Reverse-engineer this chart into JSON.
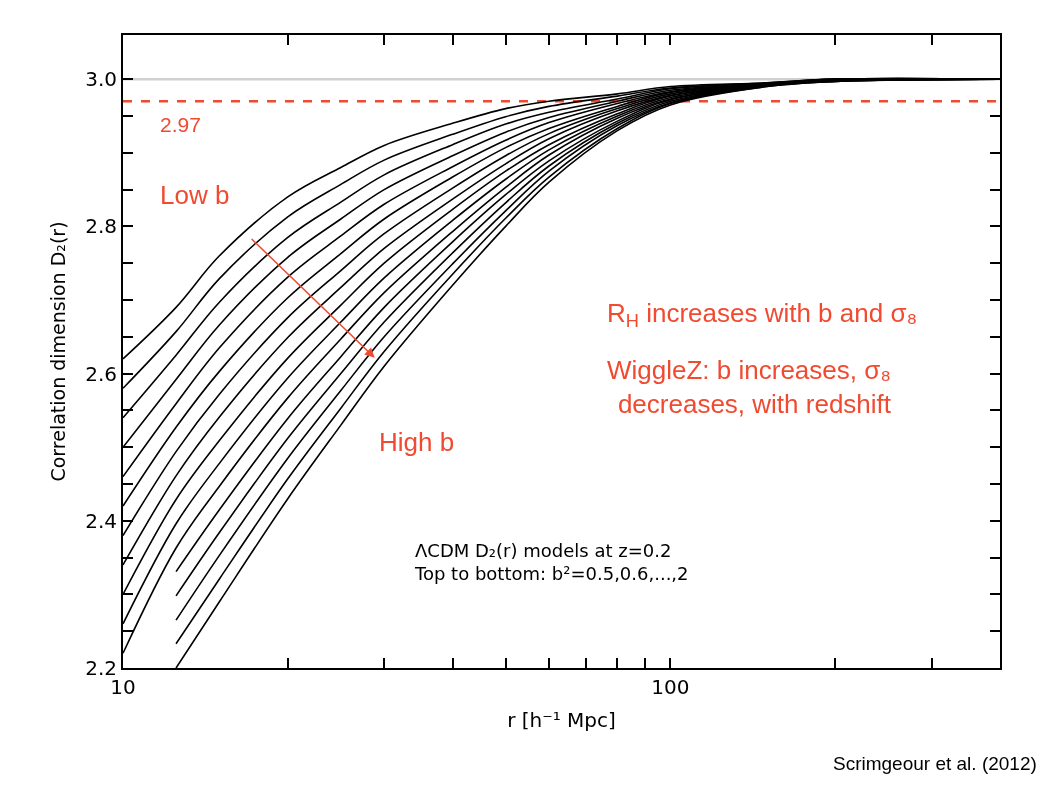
{
  "chart_data": {
    "type": "line",
    "xlabel": "r [h⁻¹ Mpc]",
    "ylabel": "Correlation dimension D₂(r)",
    "x": [
      10,
      12.5,
      15,
      20,
      25,
      30,
      40,
      50,
      60,
      80,
      100,
      150,
      200,
      400
    ],
    "log": "x",
    "xlim": [
      10,
      400
    ],
    "ylim": [
      2.2,
      3.06
    ],
    "xticks": [
      10,
      {
        "value": 20,
        "label": null
      },
      {
        "value": 30,
        "label": null
      },
      {
        "value": 40,
        "label": null
      },
      {
        "value": 50,
        "label": null
      },
      {
        "value": 60,
        "label": null
      },
      {
        "value": 70,
        "label": null
      },
      {
        "value": 80,
        "label": null
      },
      {
        "value": 90,
        "label": null
      },
      100,
      {
        "value": 200,
        "label": null
      },
      {
        "value": 300,
        "label": null
      }
    ],
    "yticks": [
      2.2,
      {
        "value": 2.25,
        "label": null
      },
      {
        "value": 2.3,
        "label": null
      },
      {
        "value": 2.35,
        "label": null
      },
      2.4,
      {
        "value": 2.45,
        "label": null
      },
      {
        "value": 2.5,
        "label": null
      },
      {
        "value": 2.55,
        "label": null
      },
      2.6,
      {
        "value": 2.65,
        "label": null
      },
      {
        "value": 2.7,
        "label": null
      },
      {
        "value": 2.75,
        "label": null
      },
      2.8,
      {
        "value": 2.85,
        "label": null
      },
      {
        "value": 2.9,
        "label": null
      },
      {
        "value": 2.95,
        "label": null
      },
      {
        "value": 3.0,
        "label": "3.0"
      }
    ],
    "grid": false,
    "legend": false,
    "marker": "none",
    "line_style": "solid",
    "series": [
      {
        "color": "#000000",
        "values": [
          2.62,
          2.69,
          2.76,
          2.84,
          2.88,
          2.91,
          2.94,
          2.96,
          2.97,
          2.98,
          2.99,
          2.995,
          3.0,
          3.0
        ]
      },
      {
        "color": "#000000",
        "values": [
          2.58,
          2.657,
          2.729,
          2.813,
          2.857,
          2.89,
          2.925,
          2.949,
          2.963,
          2.977,
          2.988,
          2.995,
          3.0,
          3.0
        ]
      },
      {
        "color": "#000000",
        "values": [
          2.54,
          2.625,
          2.697,
          2.785,
          2.833,
          2.87,
          2.911,
          2.939,
          2.955,
          2.973,
          2.987,
          2.994,
          3.0,
          3.0
        ]
      },
      {
        "color": "#000000",
        "values": [
          2.5,
          2.592,
          2.666,
          2.758,
          2.81,
          2.85,
          2.896,
          2.928,
          2.948,
          2.97,
          2.985,
          2.994,
          2.999,
          3.0
        ]
      },
      {
        "color": "#000000",
        "values": [
          2.46,
          2.559,
          2.635,
          2.731,
          2.787,
          2.83,
          2.881,
          2.917,
          2.941,
          2.967,
          2.983,
          2.994,
          2.999,
          3.0
        ]
      },
      {
        "color": "#000000",
        "values": [
          2.42,
          2.527,
          2.603,
          2.703,
          2.763,
          2.81,
          2.867,
          2.907,
          2.933,
          2.963,
          2.982,
          2.993,
          2.999,
          3.0
        ]
      },
      {
        "color": "#000000",
        "values": [
          2.38,
          2.494,
          2.572,
          2.676,
          2.74,
          2.79,
          2.852,
          2.896,
          2.926,
          2.96,
          2.98,
          2.993,
          2.999,
          3.0
        ]
      },
      {
        "color": "#000000",
        "values": [
          2.34,
          2.461,
          2.541,
          2.649,
          2.717,
          2.77,
          2.837,
          2.885,
          2.919,
          2.957,
          2.978,
          2.993,
          2.999,
          3.0
        ]
      },
      {
        "color": "#000000",
        "values": [
          2.3,
          2.429,
          2.509,
          2.621,
          2.693,
          2.75,
          2.823,
          2.875,
          2.911,
          2.953,
          2.977,
          2.992,
          2.998,
          3.0
        ]
      },
      {
        "color": "#000000",
        "values": [
          2.26,
          2.396,
          2.478,
          2.594,
          2.67,
          2.73,
          2.808,
          2.864,
          2.904,
          2.95,
          2.975,
          2.992,
          2.998,
          3.0
        ]
      },
      {
        "color": "#000000",
        "values": [
          2.22,
          2.363,
          2.447,
          2.567,
          2.647,
          2.71,
          2.793,
          2.853,
          2.897,
          2.947,
          2.973,
          2.992,
          2.998,
          3.0
        ]
      },
      {
        "color": "#000000",
        "values": [
          null,
          2.331,
          2.415,
          2.539,
          2.623,
          2.69,
          2.779,
          2.843,
          2.889,
          2.943,
          2.972,
          2.991,
          2.998,
          3.0
        ]
      },
      {
        "color": "#000000",
        "values": [
          null,
          2.298,
          2.384,
          2.512,
          2.6,
          2.67,
          2.764,
          2.832,
          2.882,
          2.94,
          2.97,
          2.991,
          2.998,
          3.0
        ]
      },
      {
        "color": "#000000",
        "values": [
          null,
          2.265,
          2.353,
          2.485,
          2.577,
          2.65,
          2.749,
          2.821,
          2.875,
          2.937,
          2.968,
          2.991,
          2.997,
          3.0
        ]
      },
      {
        "color": "#000000",
        "values": [
          null,
          2.233,
          2.321,
          2.457,
          2.553,
          2.63,
          2.735,
          2.811,
          2.867,
          2.933,
          2.967,
          2.99,
          2.997,
          3.0
        ]
      },
      {
        "color": "#000000",
        "values": [
          null,
          2.2,
          2.29,
          2.43,
          2.53,
          2.61,
          2.72,
          2.8,
          2.86,
          2.93,
          2.965,
          2.99,
          2.997,
          3.0
        ]
      }
    ],
    "ref_lines": [
      {
        "axis": "y",
        "value": 3.0,
        "label": null,
        "color": "#d0d0d0",
        "line_style": "solid"
      },
      {
        "axis": "y",
        "value": 2.97,
        "label": "2.97",
        "color": "#f04a30",
        "line_style": "dashed"
      }
    ],
    "annotations": [
      "Low b",
      "High b",
      "R$_{H}$ increases with b and σ₈",
      "WiggleZ: b increases, σ₈\ndecreases, with redshift",
      "ΛCDM D₂(r) models at z=0.2\nTop to bottom: b²=0.5,0.6,...,2",
      "Scrimgeour et al. (2012)"
    ]
  }
}
